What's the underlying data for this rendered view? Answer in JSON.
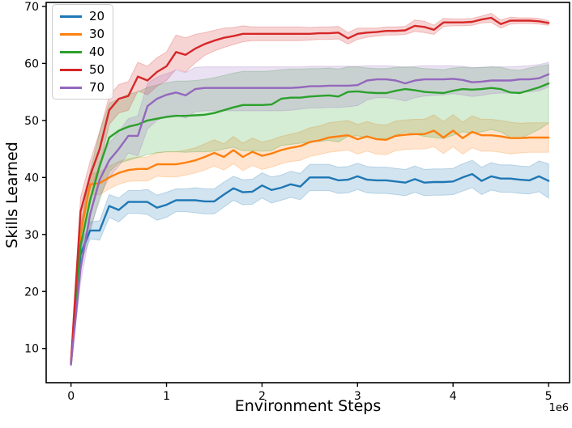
{
  "figure": {
    "xlabel": "Environment Steps",
    "ylabel": "Skills Learned",
    "x_offset_label": "1e6"
  },
  "chart_data": {
    "type": "line",
    "title": "",
    "xlabel": "Environment Steps",
    "ylabel": "Skills Learned",
    "x_units": "1e6",
    "xlim": [
      -0.26,
      5.22
    ],
    "ylim": [
      4.0,
      70.7
    ],
    "grid": false,
    "legend_position": "upper left",
    "x_ticks": [
      0,
      1,
      2,
      3,
      4,
      5
    ],
    "x_tick_labels": [
      "0",
      "1",
      "2",
      "3",
      "4",
      "5"
    ],
    "y_ticks": [
      10,
      20,
      30,
      40,
      50,
      60,
      70
    ],
    "y_tick_labels": [
      "10",
      "20",
      "30",
      "40",
      "50",
      "60",
      "70"
    ],
    "x_start": 0,
    "x_step": 0.1,
    "band_alpha": 0.2,
    "series": [
      {
        "name": "20",
        "color": "#1f77b4",
        "values": [
          7.4,
          26.5,
          30.7,
          30.7,
          35.0,
          34.3,
          35.7,
          35.7,
          35.7,
          34.7,
          35.2,
          36.0,
          36.0,
          36.0,
          35.8,
          35.8,
          37.0,
          38.1,
          37.4,
          37.5,
          38.6,
          37.8,
          38.2,
          38.8,
          38.4,
          40.0,
          40.0,
          40.0,
          39.5,
          39.6,
          40.2,
          39.6,
          39.5,
          39.5,
          39.3,
          39.1,
          39.7,
          39.1,
          39.2,
          39.2,
          39.3,
          40.0,
          40.6,
          39.4,
          40.2,
          39.8,
          39.8,
          39.6,
          39.5,
          40.2,
          39.4
        ],
        "lo": [
          7.0,
          25.0,
          29.2,
          29.0,
          33.0,
          32.2,
          33.7,
          33.7,
          33.5,
          32.5,
          33.0,
          34.0,
          34.0,
          33.8,
          33.6,
          33.6,
          34.8,
          36.0,
          35.2,
          35.3,
          36.4,
          35.5,
          36.0,
          36.5,
          36.1,
          37.7,
          37.7,
          37.7,
          37.2,
          37.3,
          37.9,
          37.3,
          37.2,
          37.2,
          37.0,
          36.8,
          37.4,
          36.8,
          36.9,
          36.9,
          37.0,
          37.6,
          38.2,
          37.0,
          37.8,
          37.4,
          37.4,
          37.2,
          37.1,
          37.5,
          36.4
        ],
        "hi": [
          7.8,
          28.0,
          32.2,
          32.4,
          37.0,
          36.4,
          37.7,
          37.7,
          37.9,
          36.9,
          37.4,
          38.0,
          38.0,
          38.2,
          38.0,
          38.0,
          39.2,
          40.2,
          39.6,
          39.7,
          40.8,
          40.1,
          40.4,
          41.1,
          40.7,
          42.3,
          42.3,
          42.3,
          41.8,
          41.9,
          42.5,
          41.9,
          41.8,
          41.8,
          41.6,
          41.4,
          42.0,
          41.4,
          41.5,
          41.5,
          41.6,
          42.4,
          43.0,
          41.8,
          42.6,
          42.2,
          42.2,
          42.0,
          41.9,
          42.9,
          42.4
        ]
      },
      {
        "name": "30",
        "color": "#ff7f0e",
        "values": [
          7.5,
          30.0,
          38.8,
          39.0,
          40.0,
          40.8,
          41.3,
          41.5,
          41.5,
          42.3,
          42.3,
          42.3,
          42.6,
          43.0,
          43.6,
          44.3,
          43.6,
          44.8,
          43.6,
          44.5,
          43.8,
          44.2,
          44.8,
          45.2,
          45.5,
          46.2,
          46.5,
          47.0,
          47.2,
          47.4,
          46.7,
          47.2,
          46.7,
          46.6,
          47.3,
          47.5,
          47.6,
          47.6,
          48.2,
          47.0,
          48.2,
          46.9,
          48.0,
          47.4,
          47.4,
          47.2,
          46.9,
          46.9,
          47.0,
          47.0,
          47.0
        ],
        "lo": [
          7.1,
          28.2,
          37.0,
          37.0,
          38.0,
          38.8,
          39.3,
          39.4,
          39.4,
          40.2,
          40.1,
          40.1,
          40.4,
          40.8,
          41.3,
          42.0,
          41.3,
          42.4,
          41.2,
          42.1,
          41.4,
          41.8,
          42.4,
          42.8,
          43.0,
          43.7,
          44.0,
          44.4,
          44.6,
          44.8,
          44.1,
          44.6,
          44.1,
          44.0,
          44.7,
          44.9,
          45.0,
          45.0,
          45.4,
          44.2,
          45.4,
          44.1,
          45.2,
          44.6,
          44.6,
          44.4,
          44.1,
          44.3,
          44.4,
          44.4,
          44.4
        ],
        "hi": [
          7.9,
          31.8,
          40.6,
          41.0,
          42.0,
          42.8,
          43.3,
          43.6,
          43.6,
          44.4,
          44.5,
          44.5,
          44.8,
          45.2,
          45.9,
          46.6,
          45.9,
          47.2,
          46.0,
          46.9,
          46.2,
          46.6,
          47.2,
          47.6,
          48.0,
          48.7,
          49.0,
          49.6,
          49.8,
          50.0,
          49.3,
          49.8,
          49.3,
          49.2,
          49.9,
          50.1,
          50.2,
          50.2,
          51.0,
          49.8,
          51.0,
          49.7,
          50.8,
          50.2,
          50.2,
          50.0,
          49.7,
          49.5,
          49.6,
          49.6,
          49.6
        ]
      },
      {
        "name": "40",
        "color": "#2ca02c",
        "values": [
          7.3,
          28.0,
          36.0,
          42.0,
          47.0,
          48.2,
          48.9,
          49.3,
          50.0,
          50.3,
          50.6,
          50.8,
          50.8,
          50.9,
          51.0,
          51.3,
          51.8,
          52.3,
          52.7,
          52.7,
          52.7,
          52.8,
          53.8,
          54.0,
          54.0,
          54.2,
          54.3,
          54.4,
          54.2,
          55.0,
          55.1,
          54.9,
          54.8,
          54.8,
          55.2,
          55.5,
          55.3,
          55.0,
          54.9,
          54.8,
          55.2,
          55.5,
          55.4,
          55.5,
          55.7,
          55.5,
          54.9,
          54.8,
          55.3,
          55.8,
          56.5
        ],
        "lo": [
          6.9,
          25.0,
          31.0,
          36.0,
          41.0,
          42.5,
          43.0,
          43.5,
          44.0,
          44.3,
          44.5,
          44.5,
          44.4,
          44.5,
          44.5,
          44.6,
          45.0,
          45.3,
          44.7,
          44.7,
          44.6,
          44.7,
          45.6,
          45.8,
          46.0,
          46.2,
          46.3,
          46.5,
          46.2,
          47.2,
          47.3,
          47.0,
          46.8,
          46.8,
          47.4,
          48.0,
          47.6,
          47.2,
          47.0,
          46.8,
          47.4,
          48.0,
          47.8,
          48.0,
          48.4,
          48.0,
          47.0,
          46.8,
          47.6,
          48.4,
          49.5
        ],
        "hi": [
          7.7,
          31.0,
          41.0,
          48.0,
          53.0,
          53.8,
          54.6,
          55.0,
          55.8,
          56.2,
          56.6,
          56.9,
          56.9,
          57.0,
          57.2,
          57.5,
          57.9,
          58.3,
          58.6,
          58.6,
          58.6,
          58.7,
          58.9,
          59.0,
          59.0,
          59.1,
          59.1,
          59.2,
          59.0,
          59.4,
          59.4,
          59.2,
          59.1,
          59.1,
          59.3,
          59.4,
          59.3,
          59.1,
          59.0,
          58.9,
          59.2,
          59.3,
          59.2,
          59.3,
          59.4,
          59.3,
          58.9,
          58.8,
          59.2,
          59.5,
          59.8
        ]
      },
      {
        "name": "50",
        "color": "#d62728",
        "values": [
          7.6,
          34.0,
          40.3,
          45.0,
          51.8,
          53.8,
          54.3,
          57.7,
          57.0,
          58.5,
          59.5,
          62.0,
          61.5,
          62.6,
          63.4,
          64.0,
          64.5,
          64.8,
          65.2,
          65.2,
          65.2,
          65.2,
          65.2,
          65.2,
          65.2,
          65.2,
          65.3,
          65.3,
          65.4,
          64.4,
          65.2,
          65.4,
          65.5,
          65.7,
          65.7,
          65.8,
          66.6,
          66.4,
          65.9,
          67.2,
          67.2,
          67.2,
          67.3,
          67.7,
          68.0,
          66.9,
          67.5,
          67.5,
          67.5,
          67.4,
          67.1
        ],
        "lo": [
          7.2,
          31.5,
          37.8,
          42.0,
          49.3,
          51.3,
          51.8,
          55.2,
          54.5,
          56.0,
          57.0,
          59.0,
          58.5,
          60.1,
          61.4,
          62.2,
          62.8,
          63.3,
          63.8,
          64.0,
          64.0,
          64.0,
          64.0,
          64.0,
          64.0,
          64.1,
          64.2,
          64.2,
          64.3,
          63.4,
          64.2,
          64.6,
          64.8,
          65.0,
          65.0,
          65.1,
          65.6,
          65.4,
          65.1,
          66.5,
          66.6,
          66.6,
          66.7,
          67.1,
          67.2,
          66.2,
          66.9,
          67.0,
          67.0,
          66.9,
          66.7
        ],
        "hi": [
          8.0,
          36.5,
          42.8,
          48.0,
          54.3,
          56.3,
          56.8,
          60.2,
          59.5,
          61.0,
          62.0,
          65.0,
          64.5,
          65.1,
          65.4,
          65.8,
          66.2,
          66.3,
          66.6,
          66.4,
          66.4,
          66.4,
          66.4,
          66.4,
          66.4,
          66.3,
          66.4,
          66.4,
          66.5,
          65.4,
          66.2,
          66.2,
          66.2,
          66.4,
          66.4,
          66.5,
          67.6,
          67.4,
          66.7,
          67.9,
          67.8,
          67.8,
          67.9,
          68.3,
          68.8,
          67.6,
          68.1,
          68.0,
          68.0,
          67.9,
          67.5
        ]
      },
      {
        "name": "70",
        "color": "#9467bd",
        "values": [
          7.2,
          24.0,
          33.5,
          39.6,
          43.0,
          45.0,
          47.3,
          47.3,
          52.5,
          53.8,
          54.5,
          54.9,
          54.4,
          55.5,
          55.7,
          55.7,
          55.7,
          55.7,
          55.7,
          55.7,
          55.7,
          55.7,
          55.7,
          55.7,
          55.8,
          56.0,
          56.0,
          56.1,
          56.1,
          56.1,
          56.2,
          57.0,
          57.2,
          57.2,
          57.0,
          56.5,
          57.0,
          57.2,
          57.2,
          57.2,
          57.3,
          57.1,
          56.7,
          56.8,
          57.0,
          57.0,
          57.0,
          57.2,
          57.2,
          57.4,
          58.1
        ],
        "lo": [
          6.8,
          21.5,
          30.5,
          36.6,
          40.0,
          42.0,
          44.3,
          43.8,
          48.5,
          50.0,
          50.8,
          51.0,
          50.4,
          51.5,
          51.7,
          51.7,
          51.7,
          51.7,
          51.7,
          51.7,
          51.7,
          51.7,
          51.7,
          51.8,
          52.0,
          52.2,
          52.2,
          52.3,
          52.3,
          52.4,
          52.6,
          53.6,
          54.0,
          54.0,
          53.8,
          53.4,
          54.0,
          54.3,
          54.4,
          54.5,
          54.7,
          54.5,
          54.2,
          54.4,
          54.7,
          54.8,
          54.8,
          55.0,
          55.0,
          55.2,
          55.9
        ],
        "hi": [
          7.6,
          26.5,
          36.5,
          42.6,
          46.0,
          48.0,
          50.3,
          50.8,
          56.5,
          57.6,
          58.2,
          58.8,
          58.4,
          59.3,
          59.4,
          59.4,
          59.4,
          59.4,
          59.4,
          59.4,
          59.4,
          59.4,
          59.4,
          59.4,
          59.4,
          59.5,
          59.5,
          59.5,
          59.5,
          59.5,
          59.5,
          59.6,
          59.6,
          59.6,
          59.5,
          59.3,
          59.5,
          59.6,
          59.6,
          59.6,
          59.6,
          59.5,
          59.3,
          59.3,
          59.4,
          59.4,
          59.4,
          59.5,
          59.6,
          59.8,
          60.2
        ]
      }
    ]
  }
}
